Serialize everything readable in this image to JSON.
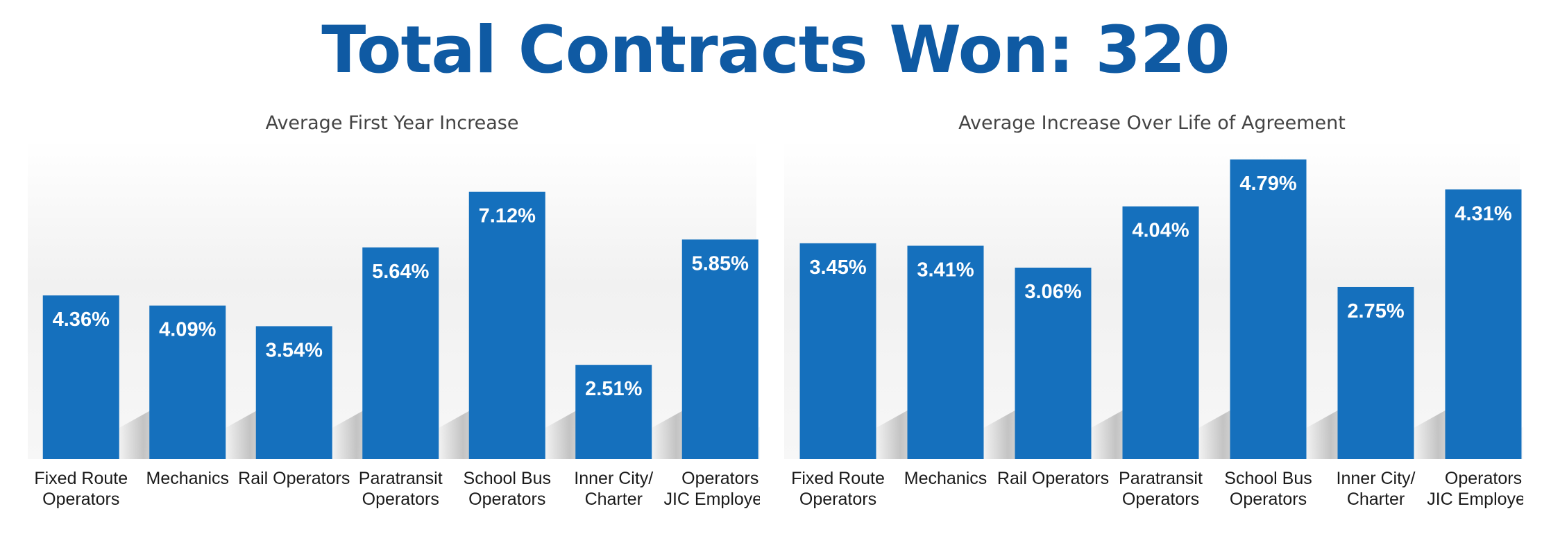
{
  "title": "Total Contracts Won: 320",
  "colors": {
    "bar": "#1570bd",
    "title": "#0f5aa3",
    "label": "#ffffff"
  },
  "chart_data": [
    {
      "type": "bar",
      "title": "Average First Year Increase",
      "categories": [
        [
          "Fixed Route",
          "Operators"
        ],
        [
          "Mechanics"
        ],
        [
          "Rail Operators"
        ],
        [
          "Paratransit",
          "Operators"
        ],
        [
          "School Bus",
          "Operators"
        ],
        [
          "Inner City/",
          "Charter"
        ],
        [
          "Operators",
          "JIC Employers"
        ]
      ],
      "values": [
        4.36,
        4.09,
        3.54,
        5.64,
        7.12,
        2.51,
        5.85
      ],
      "value_labels": [
        "4.36%",
        "4.09%",
        "3.54%",
        "5.64%",
        "7.12%",
        "2.51%",
        "5.85%"
      ],
      "ylim": [
        0,
        8.5
      ],
      "grid": false
    },
    {
      "type": "bar",
      "title": "Average Increase Over Life of Agreement",
      "categories": [
        [
          "Fixed Route",
          "Operators"
        ],
        [
          "Mechanics"
        ],
        [
          "Rail Operators"
        ],
        [
          "Paratransit",
          "Operators"
        ],
        [
          "School Bus",
          "Operators"
        ],
        [
          "Inner City/",
          "Charter"
        ],
        [
          "Operators",
          "JIC Employers"
        ]
      ],
      "values": [
        3.45,
        3.41,
        3.06,
        4.04,
        4.79,
        2.75,
        4.31
      ],
      "value_labels": [
        "3.45%",
        "3.41%",
        "3.06%",
        "4.04%",
        "4.79%",
        "2.75%",
        "4.31%"
      ],
      "ylim": [
        0,
        5.1
      ],
      "grid": false
    }
  ]
}
